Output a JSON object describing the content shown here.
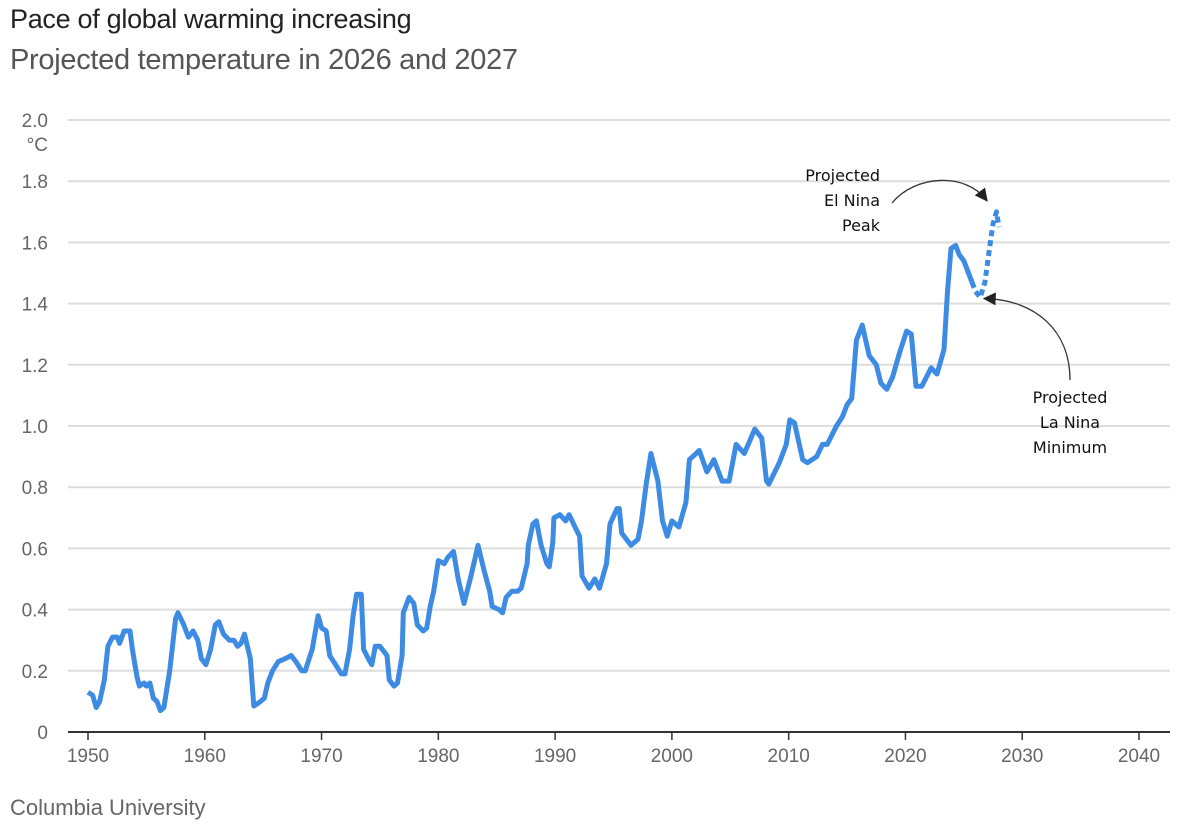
{
  "header": {
    "title": "Pace of global warming increasing",
    "subtitle": "Projected temperature in 2026 and 2027"
  },
  "source": "Columbia University",
  "chart_data": {
    "type": "line",
    "title": "Pace of global warming increasing",
    "subtitle": "Projected temperature in 2026 and 2027",
    "xlabel": "",
    "ylabel": "°C",
    "xlim": [
      1950,
      2040
    ],
    "ylim": [
      0,
      2.0
    ],
    "x_ticks": [
      "1950",
      "1960",
      "1970",
      "1980",
      "1990",
      "2000",
      "2010",
      "2020",
      "2030",
      "2040"
    ],
    "y_ticks": [
      "0",
      "0.2",
      "0.4",
      "0.6",
      "0.8",
      "1.0",
      "1.2",
      "1.4",
      "1.6",
      "1.8",
      "2.0"
    ],
    "y_unit": "°C",
    "grid": "horizontal",
    "colors": {
      "line": "#3d8be3",
      "grid": "#dddddd",
      "axis": "#333333"
    },
    "series": [
      {
        "style": "solid",
        "points": [
          [
            1950.0,
            0.13
          ],
          [
            1950.4,
            0.12
          ],
          [
            1950.7,
            0.08
          ],
          [
            1951.0,
            0.1
          ],
          [
            1951.4,
            0.17
          ],
          [
            1951.7,
            0.28
          ],
          [
            1952.1,
            0.31
          ],
          [
            1952.5,
            0.31
          ],
          [
            1952.7,
            0.29
          ],
          [
            1953.1,
            0.33
          ],
          [
            1953.6,
            0.33
          ],
          [
            1953.8,
            0.27
          ],
          [
            1954.2,
            0.18
          ],
          [
            1954.4,
            0.15
          ],
          [
            1954.8,
            0.16
          ],
          [
            1955.0,
            0.15
          ],
          [
            1955.3,
            0.16
          ],
          [
            1955.6,
            0.11
          ],
          [
            1955.9,
            0.1
          ],
          [
            1956.2,
            0.07
          ],
          [
            1956.5,
            0.08
          ],
          [
            1957.0,
            0.2
          ],
          [
            1957.5,
            0.37
          ],
          [
            1957.7,
            0.39
          ],
          [
            1958.2,
            0.35
          ],
          [
            1958.6,
            0.31
          ],
          [
            1959.0,
            0.33
          ],
          [
            1959.4,
            0.3
          ],
          [
            1959.7,
            0.24
          ],
          [
            1960.1,
            0.22
          ],
          [
            1960.5,
            0.27
          ],
          [
            1960.9,
            0.35
          ],
          [
            1961.2,
            0.36
          ],
          [
            1961.6,
            0.32
          ],
          [
            1962.1,
            0.3
          ],
          [
            1962.5,
            0.3
          ],
          [
            1962.8,
            0.28
          ],
          [
            1963.1,
            0.29
          ],
          [
            1963.4,
            0.32
          ],
          [
            1963.9,
            0.24
          ],
          [
            1964.2,
            0.085
          ],
          [
            1964.6,
            0.095
          ],
          [
            1965.1,
            0.11
          ],
          [
            1965.4,
            0.16
          ],
          [
            1965.8,
            0.2
          ],
          [
            1966.3,
            0.23
          ],
          [
            1966.9,
            0.24
          ],
          [
            1967.4,
            0.25
          ],
          [
            1967.8,
            0.23
          ],
          [
            1968.3,
            0.2
          ],
          [
            1968.6,
            0.2
          ],
          [
            1969.2,
            0.27
          ],
          [
            1969.7,
            0.38
          ],
          [
            1970.0,
            0.34
          ],
          [
            1970.4,
            0.33
          ],
          [
            1970.7,
            0.25
          ],
          [
            1971.2,
            0.22
          ],
          [
            1971.7,
            0.19
          ],
          [
            1972.0,
            0.19
          ],
          [
            1972.4,
            0.27
          ],
          [
            1972.7,
            0.38
          ],
          [
            1973.0,
            0.45
          ],
          [
            1973.4,
            0.45
          ],
          [
            1973.6,
            0.27
          ],
          [
            1974.0,
            0.24
          ],
          [
            1974.3,
            0.22
          ],
          [
            1974.6,
            0.28
          ],
          [
            1975.0,
            0.28
          ],
          [
            1975.6,
            0.25
          ],
          [
            1975.8,
            0.17
          ],
          [
            1976.2,
            0.15
          ],
          [
            1976.5,
            0.16
          ],
          [
            1976.9,
            0.25
          ],
          [
            1977.0,
            0.39
          ],
          [
            1977.5,
            0.44
          ],
          [
            1977.9,
            0.42
          ],
          [
            1978.2,
            0.35
          ],
          [
            1978.7,
            0.33
          ],
          [
            1979.0,
            0.34
          ],
          [
            1979.3,
            0.41
          ],
          [
            1979.6,
            0.46
          ],
          [
            1980.0,
            0.56
          ],
          [
            1980.5,
            0.55
          ],
          [
            1980.8,
            0.57
          ],
          [
            1981.3,
            0.59
          ],
          [
            1981.7,
            0.5
          ],
          [
            1982.2,
            0.42
          ],
          [
            1982.8,
            0.51
          ],
          [
            1983.4,
            0.61
          ],
          [
            1983.9,
            0.53
          ],
          [
            1984.4,
            0.46
          ],
          [
            1984.6,
            0.41
          ],
          [
            1985.2,
            0.4
          ],
          [
            1985.5,
            0.39
          ],
          [
            1985.8,
            0.44
          ],
          [
            1986.3,
            0.46
          ],
          [
            1986.8,
            0.46
          ],
          [
            1987.1,
            0.47
          ],
          [
            1987.6,
            0.55
          ],
          [
            1987.7,
            0.61
          ],
          [
            1988.1,
            0.68
          ],
          [
            1988.4,
            0.69
          ],
          [
            1988.8,
            0.61
          ],
          [
            1989.3,
            0.55
          ],
          [
            1989.5,
            0.54
          ],
          [
            1989.8,
            0.62
          ],
          [
            1989.9,
            0.7
          ],
          [
            1990.4,
            0.71
          ],
          [
            1990.9,
            0.69
          ],
          [
            1991.2,
            0.71
          ],
          [
            1991.7,
            0.67
          ],
          [
            1992.1,
            0.64
          ],
          [
            1992.3,
            0.51
          ],
          [
            1992.9,
            0.47
          ],
          [
            1993.4,
            0.5
          ],
          [
            1993.8,
            0.47
          ],
          [
            1994.4,
            0.55
          ],
          [
            1994.7,
            0.68
          ],
          [
            1995.3,
            0.73
          ],
          [
            1995.5,
            0.73
          ],
          [
            1995.7,
            0.65
          ],
          [
            1996.5,
            0.61
          ],
          [
            1997.1,
            0.63
          ],
          [
            1997.4,
            0.69
          ],
          [
            1997.8,
            0.81
          ],
          [
            1998.2,
            0.91
          ],
          [
            1998.8,
            0.82
          ],
          [
            1999.2,
            0.69
          ],
          [
            1999.6,
            0.64
          ],
          [
            2000.0,
            0.69
          ],
          [
            2000.6,
            0.67
          ],
          [
            2001.2,
            0.75
          ],
          [
            2001.5,
            0.89
          ],
          [
            2002.35,
            0.92
          ],
          [
            2003.0,
            0.85
          ],
          [
            2003.6,
            0.89
          ],
          [
            2004.3,
            0.82
          ],
          [
            2004.9,
            0.82
          ],
          [
            2005.5,
            0.94
          ],
          [
            2006.2,
            0.91
          ],
          [
            2007.1,
            0.99
          ],
          [
            2007.7,
            0.96
          ],
          [
            2008.1,
            0.82
          ],
          [
            2008.3,
            0.81
          ],
          [
            2009.2,
            0.88
          ],
          [
            2009.8,
            0.94
          ],
          [
            2010.1,
            1.02
          ],
          [
            2010.5,
            1.01
          ],
          [
            2011.2,
            0.89
          ],
          [
            2011.6,
            0.88
          ],
          [
            2012.4,
            0.9
          ],
          [
            2012.9,
            0.94
          ],
          [
            2013.3,
            0.94
          ],
          [
            2014.1,
            1.0
          ],
          [
            2014.6,
            1.03
          ],
          [
            2015.0,
            1.07
          ],
          [
            2015.4,
            1.09
          ],
          [
            2015.8,
            1.28
          ],
          [
            2016.3,
            1.33
          ],
          [
            2016.9,
            1.23
          ],
          [
            2017.5,
            1.2
          ],
          [
            2017.9,
            1.14
          ],
          [
            2018.4,
            1.12
          ],
          [
            2018.9,
            1.16
          ],
          [
            2019.5,
            1.24
          ],
          [
            2020.1,
            1.31
          ],
          [
            2020.5,
            1.3
          ],
          [
            2020.9,
            1.13
          ],
          [
            2021.4,
            1.13
          ],
          [
            2022.2,
            1.19
          ],
          [
            2022.7,
            1.17
          ],
          [
            2023.3,
            1.25
          ],
          [
            2023.6,
            1.44
          ],
          [
            2023.9,
            1.58
          ],
          [
            2024.3,
            1.59
          ],
          [
            2024.6,
            1.56
          ],
          [
            2025.0,
            1.54
          ],
          [
            2025.7,
            1.47
          ]
        ]
      },
      {
        "style": "dashed",
        "points": [
          [
            2025.7,
            1.47
          ],
          [
            2026.0,
            1.44
          ],
          [
            2026.4,
            1.42
          ],
          [
            2026.8,
            1.47
          ],
          [
            2027.2,
            1.58
          ],
          [
            2027.5,
            1.66
          ],
          [
            2027.8,
            1.7
          ],
          [
            2028.0,
            1.65
          ]
        ]
      }
    ],
    "annotations": [
      {
        "lines": [
          "Projected",
          "El Nina",
          "Peak"
        ],
        "target": [
          2027.6,
          1.72
        ]
      },
      {
        "lines": [
          "Projected",
          "La Nina",
          "Minimum"
        ],
        "target": [
          2026.5,
          1.41
        ]
      }
    ]
  }
}
